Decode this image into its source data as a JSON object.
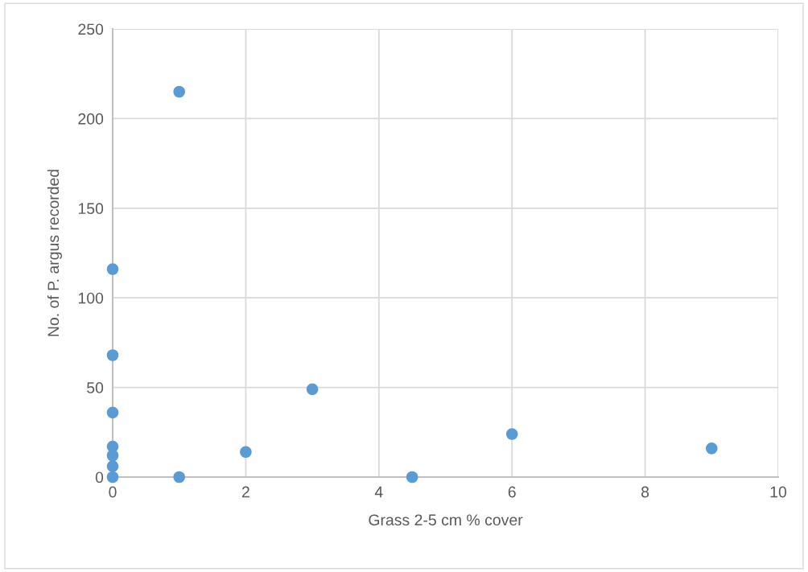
{
  "chart_data": {
    "type": "scatter",
    "xlabel": "Grass 2-5 cm % cover",
    "ylabel": "No. of P. argus recorded",
    "x": [
      1,
      0,
      0,
      0,
      3,
      6,
      9,
      0,
      2,
      0,
      0,
      0,
      1,
      4.5
    ],
    "series": [
      {
        "color": "#5b9bd5",
        "values": [
          215,
          116,
          68,
          36,
          49,
          24,
          16,
          17,
          14,
          12,
          6,
          0,
          0,
          0
        ]
      }
    ],
    "xlim": [
      0,
      10
    ],
    "xticks": [
      0,
      2,
      4,
      6,
      8,
      10
    ],
    "ylim": [
      0,
      250
    ],
    "yticks": [
      0,
      50,
      100,
      150,
      200,
      250
    ],
    "grid": true,
    "marker": "circle"
  }
}
